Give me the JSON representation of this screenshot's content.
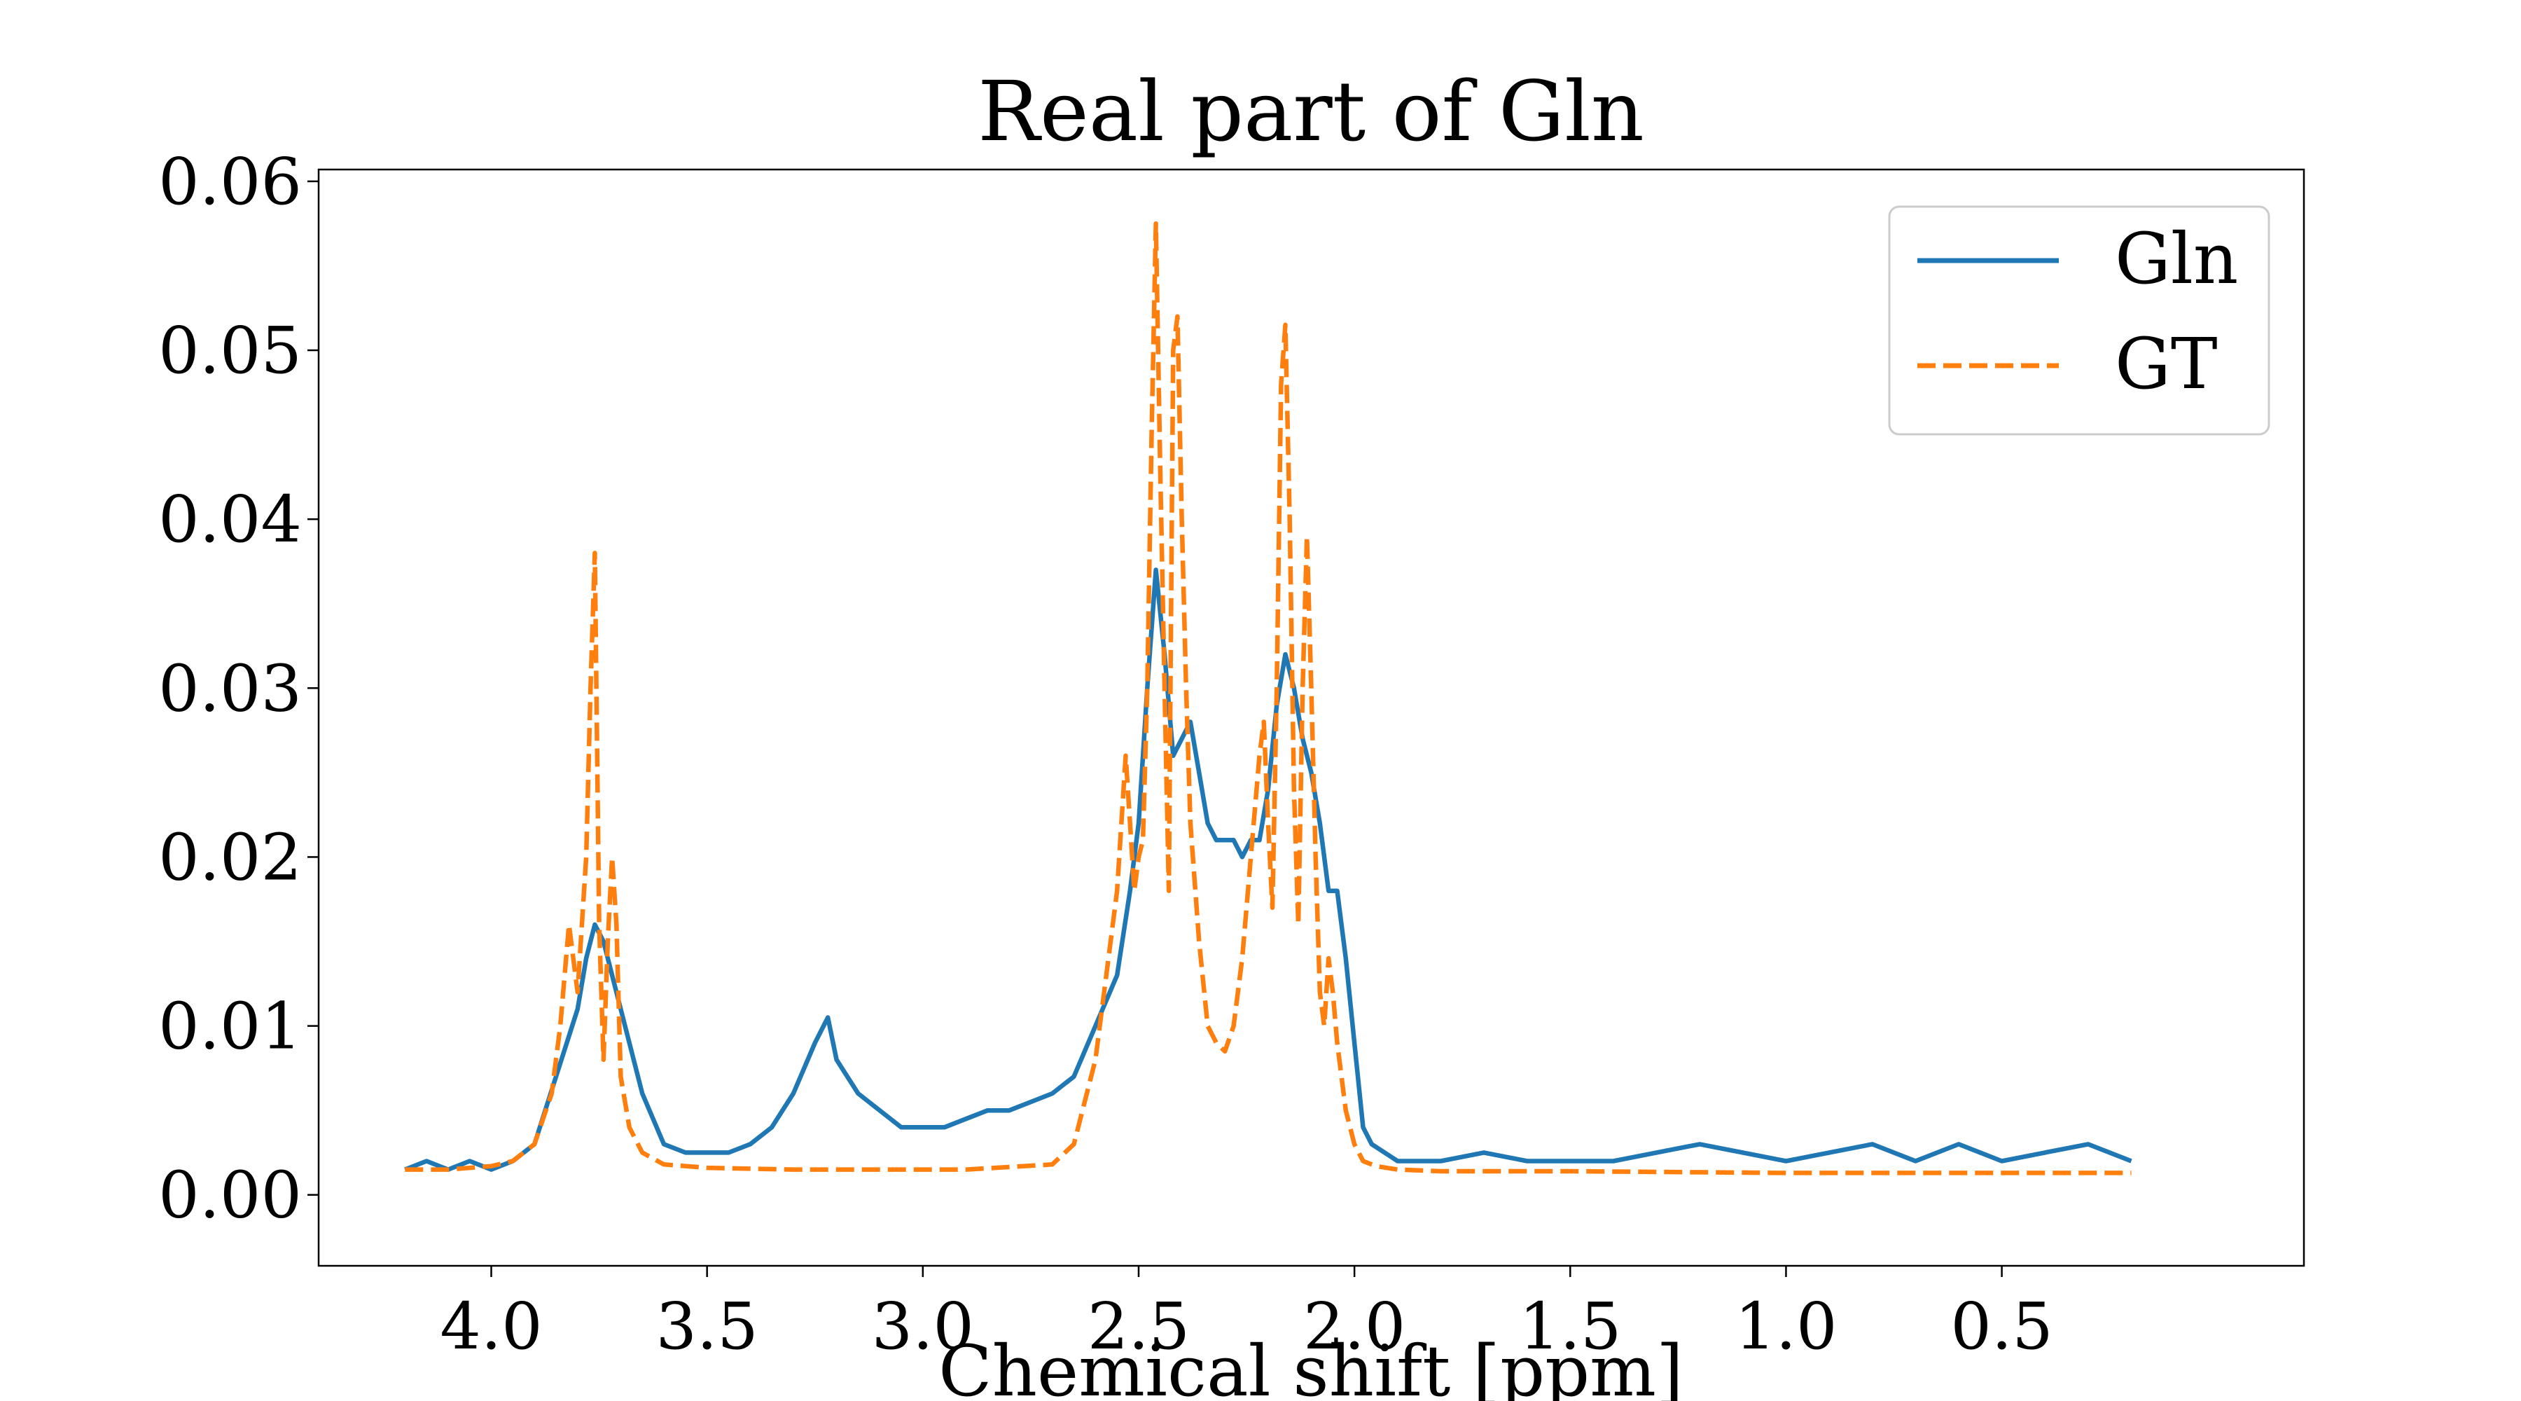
{
  "chart_data": {
    "type": "line",
    "title": "Real part of Gln",
    "xlabel": "Chemical shift [ppm]",
    "ylabel": "",
    "xlim": [
      4.4,
      -0.2
    ],
    "x_reversed": true,
    "ylim": [
      -0.0042,
      0.0607
    ],
    "x_ticks": [
      4.0,
      3.5,
      3.0,
      2.5,
      2.0,
      1.5,
      1.0,
      0.5
    ],
    "x_tick_labels": [
      "4.0",
      "3.5",
      "3.0",
      "2.5",
      "2.0",
      "1.5",
      "1.0",
      "0.5"
    ],
    "y_ticks": [
      0.0,
      0.01,
      0.02,
      0.03,
      0.04,
      0.05,
      0.06
    ],
    "y_tick_labels": [
      "0.00",
      "0.01",
      "0.02",
      "0.03",
      "0.04",
      "0.05",
      "0.06"
    ],
    "grid": false,
    "legend_position": "upper right",
    "series": [
      {
        "name": "Gln",
        "color": "#1f77b4",
        "style": "solid",
        "x": [
          4.2,
          4.15,
          4.1,
          4.05,
          4.0,
          3.95,
          3.9,
          3.85,
          3.8,
          3.78,
          3.76,
          3.74,
          3.72,
          3.7,
          3.65,
          3.6,
          3.55,
          3.5,
          3.45,
          3.4,
          3.35,
          3.3,
          3.25,
          3.22,
          3.2,
          3.15,
          3.1,
          3.05,
          3.0,
          2.95,
          2.9,
          2.85,
          2.8,
          2.75,
          2.7,
          2.65,
          2.6,
          2.55,
          2.52,
          2.5,
          2.48,
          2.46,
          2.44,
          2.42,
          2.4,
          2.38,
          2.36,
          2.34,
          2.32,
          2.3,
          2.28,
          2.26,
          2.24,
          2.22,
          2.2,
          2.18,
          2.16,
          2.14,
          2.12,
          2.1,
          2.08,
          2.06,
          2.04,
          2.02,
          2.0,
          1.98,
          1.96,
          1.9,
          1.8,
          1.7,
          1.6,
          1.5,
          1.4,
          1.3,
          1.2,
          1.1,
          1.0,
          0.9,
          0.8,
          0.7,
          0.6,
          0.5,
          0.4,
          0.3,
          0.2
        ],
        "y": [
          0.0015,
          0.002,
          0.0015,
          0.002,
          0.0015,
          0.002,
          0.003,
          0.007,
          0.011,
          0.014,
          0.016,
          0.015,
          0.013,
          0.011,
          0.006,
          0.003,
          0.0025,
          0.0025,
          0.0025,
          0.003,
          0.004,
          0.006,
          0.009,
          0.0105,
          0.008,
          0.006,
          0.005,
          0.004,
          0.004,
          0.004,
          0.0045,
          0.005,
          0.005,
          0.0055,
          0.006,
          0.007,
          0.01,
          0.013,
          0.018,
          0.022,
          0.03,
          0.037,
          0.032,
          0.026,
          0.027,
          0.028,
          0.025,
          0.022,
          0.021,
          0.021,
          0.021,
          0.02,
          0.021,
          0.021,
          0.024,
          0.029,
          0.032,
          0.03,
          0.027,
          0.025,
          0.022,
          0.018,
          0.018,
          0.014,
          0.009,
          0.004,
          0.003,
          0.002,
          0.002,
          0.0025,
          0.002,
          0.002,
          0.002,
          0.0025,
          0.003,
          0.0025,
          0.002,
          0.0025,
          0.003,
          0.002,
          0.003,
          0.002,
          0.0025,
          0.003,
          0.002
        ]
      },
      {
        "name": "GT",
        "color": "#ff7f0e",
        "style": "dashed",
        "x": [
          4.2,
          4.1,
          4.0,
          3.95,
          3.9,
          3.86,
          3.84,
          3.82,
          3.8,
          3.78,
          3.77,
          3.76,
          3.75,
          3.74,
          3.73,
          3.72,
          3.71,
          3.7,
          3.68,
          3.65,
          3.6,
          3.5,
          3.3,
          3.1,
          2.9,
          2.7,
          2.65,
          2.6,
          2.58,
          2.55,
          2.53,
          2.52,
          2.51,
          2.5,
          2.49,
          2.48,
          2.47,
          2.46,
          2.45,
          2.44,
          2.43,
          2.42,
          2.41,
          2.4,
          2.39,
          2.38,
          2.36,
          2.34,
          2.32,
          2.3,
          2.28,
          2.26,
          2.24,
          2.22,
          2.21,
          2.2,
          2.19,
          2.18,
          2.17,
          2.16,
          2.15,
          2.14,
          2.13,
          2.12,
          2.11,
          2.1,
          2.09,
          2.08,
          2.07,
          2.06,
          2.05,
          2.04,
          2.02,
          2.0,
          1.98,
          1.95,
          1.9,
          1.8,
          1.5,
          1.0,
          0.5,
          0.2
        ],
        "y": [
          0.0015,
          0.0015,
          0.0017,
          0.002,
          0.003,
          0.006,
          0.01,
          0.016,
          0.012,
          0.02,
          0.03,
          0.038,
          0.016,
          0.008,
          0.015,
          0.02,
          0.016,
          0.007,
          0.004,
          0.0025,
          0.0018,
          0.0016,
          0.0015,
          0.0015,
          0.0015,
          0.0018,
          0.003,
          0.008,
          0.012,
          0.018,
          0.026,
          0.022,
          0.018,
          0.02,
          0.021,
          0.03,
          0.045,
          0.0575,
          0.043,
          0.03,
          0.018,
          0.05,
          0.052,
          0.04,
          0.03,
          0.022,
          0.015,
          0.01,
          0.009,
          0.0085,
          0.01,
          0.014,
          0.02,
          0.026,
          0.028,
          0.022,
          0.017,
          0.03,
          0.048,
          0.0515,
          0.04,
          0.024,
          0.016,
          0.03,
          0.039,
          0.03,
          0.02,
          0.012,
          0.01,
          0.014,
          0.012,
          0.009,
          0.005,
          0.003,
          0.002,
          0.0017,
          0.0015,
          0.0014,
          0.0014,
          0.0013,
          0.0013,
          0.0013
        ]
      }
    ]
  }
}
